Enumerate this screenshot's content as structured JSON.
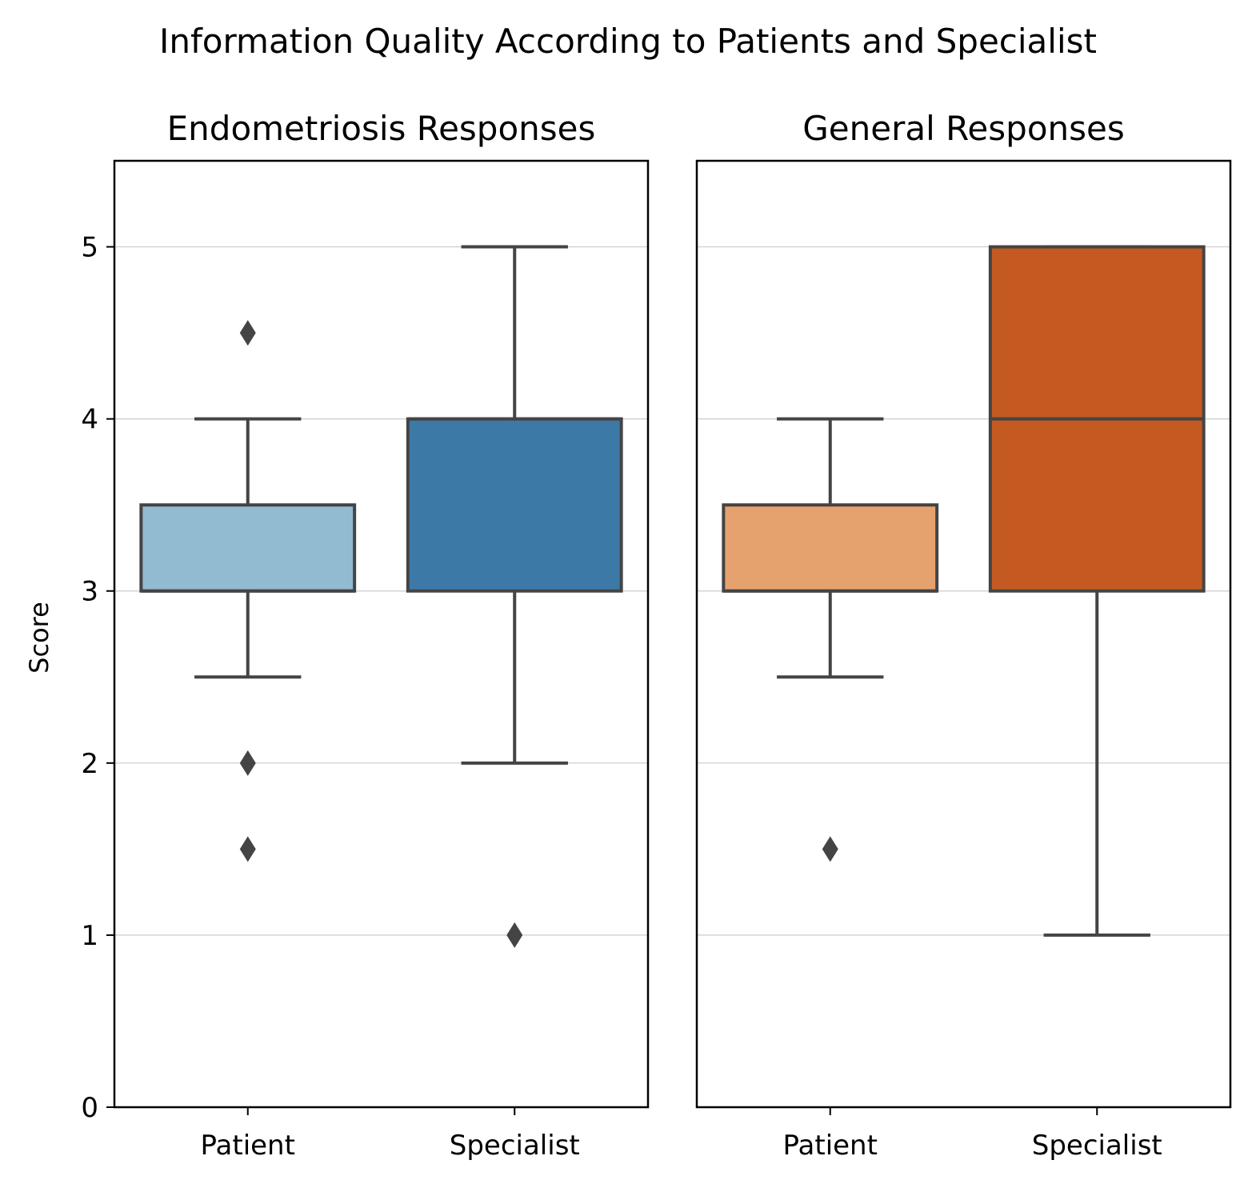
{
  "chart_data": {
    "type": "box",
    "title": "Information Quality According to Patients and Specialist",
    "ylabel": "Score",
    "ylim": [
      0,
      5.5
    ],
    "yticks": [
      0,
      1,
      2,
      3,
      4,
      5
    ],
    "grid": "horizontal",
    "shared_y": true,
    "panels": [
      {
        "title": "Endometriosis Responses",
        "categories": [
          "Patient",
          "Specialist"
        ],
        "boxes": [
          {
            "category": "Patient",
            "whisker_low": 2.5,
            "q1": 3,
            "median": 3,
            "q3": 3.5,
            "whisker_high": 4,
            "outliers": [
              4.5,
              2,
              1.5
            ],
            "color": "#92BAD1"
          },
          {
            "category": "Specialist",
            "whisker_low": 2,
            "q1": 3,
            "median": 4,
            "q3": 4,
            "whisker_high": 5,
            "outliers": [
              1
            ],
            "color": "#3D79A7"
          }
        ]
      },
      {
        "title": "General Responses",
        "categories": [
          "Patient",
          "Specialist"
        ],
        "boxes": [
          {
            "category": "Patient",
            "whisker_low": 2.5,
            "q1": 3,
            "median": 3,
            "q3": 3.5,
            "whisker_high": 4,
            "outliers": [
              1.5
            ],
            "color": "#E6A26E"
          },
          {
            "category": "Specialist",
            "whisker_low": 1,
            "q1": 3,
            "median": 4,
            "q3": 5,
            "whisker_high": 5,
            "outliers": [],
            "color": "#C45A22"
          }
        ]
      }
    ],
    "colors": {
      "box_edge": "#444444",
      "grid": "#cccccc",
      "axis": "#000000"
    }
  }
}
